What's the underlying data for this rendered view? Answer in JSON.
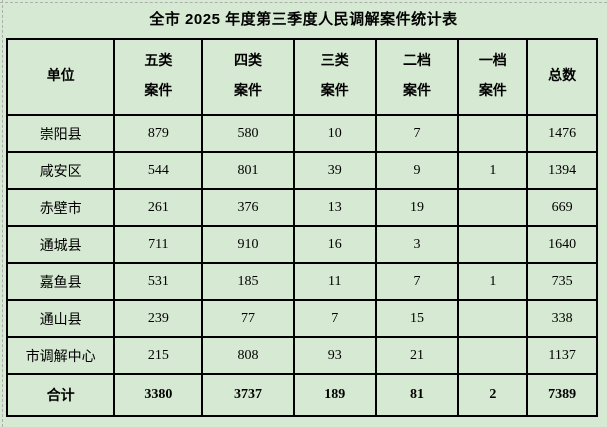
{
  "title": "全市 2025 年度第三季度人民调解案件统计表",
  "colors": {
    "background": "#d6e9d2",
    "table_border": "#000000",
    "page_break_dash": "#aeaeae",
    "text": "#000000"
  },
  "table": {
    "headers": [
      "单位",
      "五类\n案件",
      "四类\n案件",
      "三类\n案件",
      "二档\n案件",
      "一档\n案件",
      "总数"
    ],
    "rows": [
      [
        "崇阳县",
        "879",
        "580",
        "10",
        "7",
        "",
        "1476"
      ],
      [
        "咸安区",
        "544",
        "801",
        "39",
        "9",
        "1",
        "1394"
      ],
      [
        "赤壁市",
        "261",
        "376",
        "13",
        "19",
        "",
        "669"
      ],
      [
        "通城县",
        "711",
        "910",
        "16",
        "3",
        "",
        "1640"
      ],
      [
        "嘉鱼县",
        "531",
        "185",
        "11",
        "7",
        "1",
        "735"
      ],
      [
        "通山县",
        "239",
        "77",
        "7",
        "15",
        "",
        "338"
      ],
      [
        "市调解中心",
        "215",
        "808",
        "93",
        "21",
        "",
        "1137"
      ]
    ],
    "total_row": [
      "合计",
      "3380",
      "3737",
      "189",
      "81",
      "2",
      "7389"
    ]
  }
}
